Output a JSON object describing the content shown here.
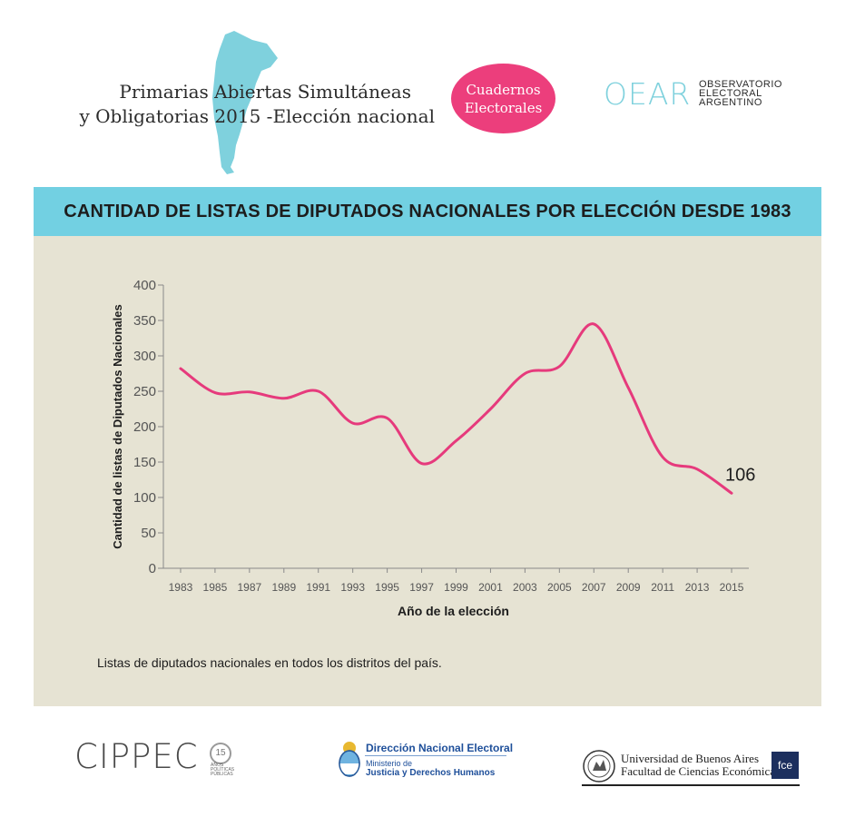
{
  "header": {
    "line1": "Primarias Abiertas Simultáneas",
    "line2": "y Obligatorias 2015 -Elección nacional",
    "badge_line1": "Cuadernos",
    "badge_line2": "Electorales",
    "oear_mark": "OEAR",
    "oear_lines": [
      "OBSERVATORIO",
      "ELECTORAL",
      "ARGENTINO"
    ]
  },
  "banner": {
    "title": "CANTIDAD DE LISTAS DE DIPUTADOS NACIONALES POR ELECCIÓN DESDE 1983"
  },
  "footnote": "Listas de diputados nacionales en todos los distritos del país.",
  "colors": {
    "line": "#e63a7c",
    "banner": "#72d0e2",
    "panel": "#e6e3d3",
    "badge": "#ec3e7c"
  },
  "footer": {
    "cippec": "CIPPEC",
    "cippec_badge": "15",
    "cippec_sub": [
      "AÑOS",
      "POLÍTICAS",
      "PÚBLICAS"
    ],
    "dne_title": "Dirección Nacional Electoral",
    "dne_sub1": "Ministerio de",
    "dne_sub2": "Justicia y Derechos Humanos",
    "uba_line1": "Universidad de Buenos Aires",
    "uba_line2": "Facultad de Ciencias Económicas",
    "fce": "fce"
  },
  "chart_data": {
    "type": "line",
    "title": "CANTIDAD DE LISTAS DE DIPUTADOS NACIONALES POR ELECCIÓN DESDE 1983",
    "xlabel": "Año de la elección",
    "ylabel": "Cantidad de listas de Diputados Nacionales",
    "x_ticks": [
      "1983",
      "1985",
      "1987",
      "1989",
      "1991",
      "1993",
      "1995",
      "1997",
      "1999",
      "2001",
      "2003",
      "2005",
      "2007",
      "2009",
      "2011",
      "2013",
      "2015"
    ],
    "y_ticks": [
      "0",
      "50",
      "100",
      "150",
      "200",
      "250",
      "300",
      "350",
      "400"
    ],
    "xlim": [
      1982,
      2016
    ],
    "ylim": [
      0,
      400
    ],
    "grid": false,
    "series": [
      {
        "name": "Listas de diputados nacionales",
        "x": [
          1983,
          1985,
          1987,
          1989,
          1991,
          1993,
          1995,
          1997,
          1999,
          2001,
          2003,
          2005,
          2007,
          2009,
          2011,
          2013,
          2015
        ],
        "values": [
          282,
          248,
          249,
          240,
          250,
          205,
          212,
          148,
          180,
          225,
          275,
          285,
          345,
          255,
          157,
          140,
          106
        ]
      }
    ],
    "annotation": {
      "text": "106",
      "x": 2015,
      "y": 106
    }
  }
}
